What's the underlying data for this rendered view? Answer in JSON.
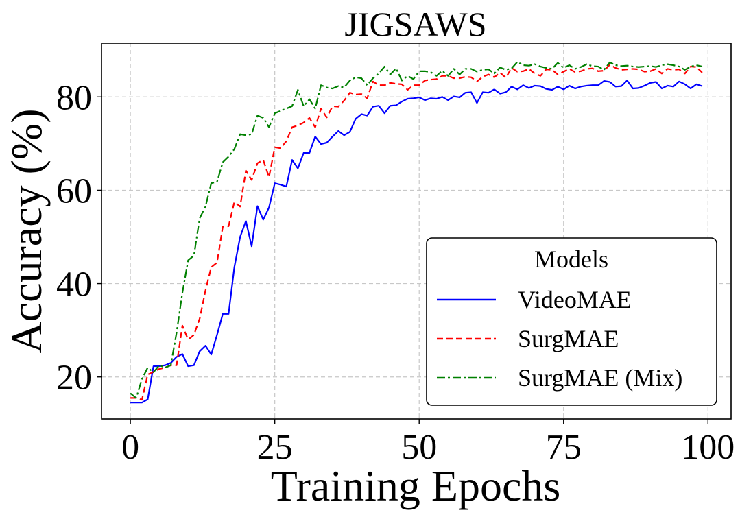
{
  "chart_data": {
    "type": "line",
    "title": "JIGSAWS",
    "xlabel": "Training Epochs",
    "ylabel": "Accuracy (%)",
    "xlim": [
      -5,
      104
    ],
    "ylim": [
      11,
      91.5
    ],
    "xticks": [
      0,
      25,
      50,
      75,
      100
    ],
    "yticks": [
      20,
      40,
      60,
      80
    ],
    "grid": true,
    "legend": {
      "title": "Models",
      "position": "lower-right"
    },
    "series": [
      {
        "name": "VideoMAE",
        "color": "#0000ff",
        "dash": "solid",
        "values": [
          14.5,
          14.5,
          14.5,
          15.2,
          22.3,
          22.3,
          22.5,
          23.0,
          24.3,
          24.9,
          22.3,
          22.5,
          25.5,
          26.7,
          24.8,
          29.0,
          33.5,
          33.5,
          43.5,
          50.0,
          53.4,
          48.0,
          56.6,
          53.7,
          56.3,
          61.5,
          61.2,
          60.8,
          66.5,
          64.7,
          68.0,
          68.0,
          71.5,
          69.9,
          70.2,
          71.5,
          72.7,
          71.8,
          72.5,
          75.3,
          76.3,
          76.0,
          77.9,
          78.1,
          76.5,
          78.1,
          78.2,
          79.0,
          79.6,
          79.7,
          79.9,
          79.3,
          79.7,
          79.6,
          80.0,
          79.3,
          80.1,
          79.9,
          80.9,
          81.0,
          78.7,
          81.0,
          80.9,
          81.6,
          80.7,
          81.0,
          82.2,
          81.6,
          82.5,
          81.9,
          82.4,
          82.3,
          81.7,
          81.5,
          82.2,
          81.6,
          82.4,
          81.8,
          82.2,
          82.4,
          82.5,
          82.5,
          83.4,
          83.2,
          82.2,
          82.3,
          83.5,
          81.8,
          81.9,
          82.4,
          83.0,
          83.2,
          81.8,
          82.4,
          82.2,
          83.3,
          82.7,
          81.8,
          82.7,
          82.3
        ]
      },
      {
        "name": "SurgMAE",
        "color": "#ff0000",
        "dash": "dashed",
        "values": [
          15.5,
          15.5,
          15.1,
          20.5,
          21.1,
          21.7,
          22.0,
          22.5,
          22.5,
          31.0,
          28.0,
          29.0,
          32.5,
          38.5,
          43.5,
          44.5,
          52.2,
          52.3,
          57.5,
          56.5,
          64.2,
          62.2,
          65.8,
          66.5,
          62.8,
          69.2,
          69.0,
          70.5,
          73.5,
          73.9,
          74.5,
          75.5,
          73.5,
          77.5,
          75.6,
          78.0,
          77.9,
          79.2,
          80.9,
          80.5,
          80.6,
          79.7,
          83.3,
          82.5,
          82.5,
          83.0,
          82.8,
          82.7,
          81.5,
          82.5,
          82.5,
          83.5,
          83.7,
          83.8,
          84.5,
          84.5,
          84.0,
          84.0,
          84.3,
          84.2,
          83.3,
          84.3,
          84.8,
          84.2,
          85.2,
          84.1,
          86.2,
          85.4,
          85.5,
          86.0,
          85.0,
          84.5,
          85.9,
          85.8,
          84.8,
          85.4,
          86.0,
          85.3,
          85.5,
          86.0,
          86.1,
          85.5,
          85.6,
          86.9,
          86.2,
          85.8,
          85.9,
          86.0,
          85.9,
          85.4,
          85.5,
          86.0,
          85.0,
          86.0,
          85.8,
          85.9,
          85.0,
          86.5,
          86.4,
          85.2
        ]
      },
      {
        "name": "SurgMAE (Mix)",
        "color": "#008000",
        "dash": "dash-dot",
        "values": [
          16.5,
          15.5,
          19.5,
          22.0,
          21.0,
          22.5,
          22.0,
          22.5,
          29.5,
          38.0,
          45.0,
          46.0,
          54.0,
          56.5,
          61.5,
          61.8,
          66.0,
          67.2,
          68.8,
          72.0,
          71.8,
          72.0,
          76.0,
          75.5,
          73.5,
          76.5,
          77.0,
          77.5,
          78.0,
          81.5,
          78.0,
          79.5,
          77.5,
          82.5,
          82.0,
          81.8,
          82.3,
          82.0,
          83.5,
          84.2,
          84.0,
          82.5,
          84.0,
          85.0,
          86.5,
          84.8,
          86.1,
          83.5,
          84.5,
          83.8,
          85.5,
          85.5,
          85.3,
          84.5,
          85.6,
          84.5,
          86.0,
          84.8,
          86.0,
          86.0,
          85.4,
          85.8,
          85.9,
          85.0,
          86.3,
          85.8,
          86.1,
          87.5,
          86.8,
          86.7,
          87.0,
          86.5,
          86.2,
          86.0,
          87.3,
          86.2,
          86.8,
          86.0,
          86.4,
          87.0,
          86.6,
          86.5,
          85.8,
          87.4,
          86.8,
          86.6,
          86.7,
          86.5,
          86.4,
          86.5,
          86.6,
          86.4,
          86.8,
          87.0,
          86.8,
          86.5,
          85.8,
          86.5,
          86.8,
          86.5
        ]
      }
    ]
  }
}
